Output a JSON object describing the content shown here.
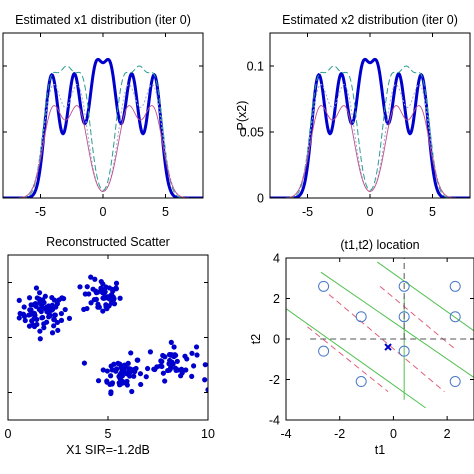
{
  "chart_data": [
    {
      "type": "line",
      "title": "Estimated x1 distribution (iter 0)",
      "xlabel": "",
      "ylabel": "",
      "xlim": [
        -8,
        8
      ],
      "ylim": [
        0,
        0.125
      ],
      "xticks": [
        -5,
        0,
        5
      ],
      "xtick_labels": [
        "-5",
        "0",
        "5"
      ],
      "yticks": [
        0,
        0.05,
        0.1
      ],
      "ytick_labels": [],
      "series": [
        {
          "color": "#0000cc",
          "style": "solid-thick",
          "kind": "mixture",
          "centers": [
            -4.1,
            -2.3,
            -0.6,
            0.6,
            2.3,
            4.1
          ],
          "sigma": 0.55,
          "peak": 0.105
        },
        {
          "color": "#2a9d8f",
          "style": "dashed",
          "kind": "mixture",
          "centers": [
            -4.2,
            -2.9,
            -1.6,
            1.6,
            2.9,
            4.2
          ],
          "sigma": 0.62,
          "peak": 0.1
        },
        {
          "color": "#9aa9d6",
          "style": "dotted",
          "kind": "mixture",
          "centers": [
            -4.0,
            -2.0,
            2.0,
            4.0
          ],
          "sigma": 0.75,
          "peak": 0.086
        },
        {
          "color": "#c0508a",
          "style": "solid-thin",
          "kind": "mixture",
          "centers": [
            -4.0,
            -2.0,
            2.0,
            4.0
          ],
          "sigma": 0.78,
          "peak": 0.07
        }
      ]
    },
    {
      "type": "line",
      "title": "Estimated x2 distribution (iter 0)",
      "xlabel": "",
      "ylabel": "P(x2)",
      "xlim": [
        -8,
        8
      ],
      "ylim": [
        0,
        0.125
      ],
      "xticks": [
        -5,
        0,
        5
      ],
      "xtick_labels": [
        "-5",
        "0",
        "5"
      ],
      "yticks": [
        0,
        0.05,
        0.1
      ],
      "ytick_labels": [
        "0",
        "0.05",
        "0.1"
      ],
      "series": [
        {
          "color": "#0000cc",
          "style": "solid-thick",
          "kind": "mixture",
          "centers": [
            -4.1,
            -2.3,
            -0.6,
            0.6,
            2.3,
            4.1
          ],
          "sigma": 0.55,
          "peak": 0.105
        },
        {
          "color": "#2a9d8f",
          "style": "dashed",
          "kind": "mixture",
          "centers": [
            -4.2,
            -2.9,
            -1.6,
            1.6,
            2.9,
            4.2
          ],
          "sigma": 0.62,
          "peak": 0.1
        },
        {
          "color": "#9aa9d6",
          "style": "dotted",
          "kind": "mixture",
          "centers": [
            -4.0,
            -2.0,
            2.0,
            4.0
          ],
          "sigma": 0.75,
          "peak": 0.086
        },
        {
          "color": "#c0508a",
          "style": "solid-thin",
          "kind": "mixture",
          "centers": [
            -4.0,
            -2.0,
            2.0,
            4.0
          ],
          "sigma": 0.78,
          "peak": 0.07
        }
      ]
    },
    {
      "type": "scatter",
      "title": "Reconstructed Scatter",
      "xlabel": "X1 SIR=-1.2dB",
      "ylabel": "",
      "xlim": [
        0,
        10
      ],
      "ylim": [
        -1.5,
        1.5
      ],
      "xticks": [
        0,
        5,
        10
      ],
      "xtick_labels": [
        "0",
        "5",
        "10"
      ],
      "yticks": [
        -1,
        0,
        1
      ],
      "ytick_labels": [],
      "color": "#0000cc",
      "x_is_centered_axis": true,
      "clusters": [
        {
          "cx": -3.2,
          "cy": 0.45,
          "sx": 1.0,
          "sy": 0.18,
          "n": 80
        },
        {
          "cx": -0.3,
          "cy": 0.75,
          "sx": 0.8,
          "sy": 0.16,
          "n": 55
        },
        {
          "cx": 0.7,
          "cy": -0.65,
          "sx": 0.9,
          "sy": 0.16,
          "n": 60
        },
        {
          "cx": 3.2,
          "cy": -0.45,
          "sx": 1.0,
          "sy": 0.16,
          "n": 50
        }
      ],
      "outliers": [
        [
          6.8,
          -0.95
        ]
      ]
    },
    {
      "type": "scatter",
      "title": "(t1,t2) location",
      "xlabel": "t1",
      "ylabel": "t2",
      "xlim": [
        -4,
        3
      ],
      "ylim": [
        -4,
        4
      ],
      "xticks": [
        -4,
        -2,
        0,
        2
      ],
      "xtick_labels": [
        "-4",
        "-2",
        "0",
        "2"
      ],
      "yticks": [
        -4,
        -2,
        0,
        2,
        4
      ],
      "ytick_labels": [
        "-4",
        "-2",
        "0",
        "2",
        "4"
      ],
      "circles": [
        [
          -2.6,
          2.6
        ],
        [
          0.4,
          2.6
        ],
        [
          2.3,
          2.6
        ],
        [
          -1.2,
          1.1
        ],
        [
          0.4,
          1.1
        ],
        [
          2.3,
          1.1
        ],
        [
          -2.6,
          -0.6
        ],
        [
          0.4,
          -0.6
        ],
        [
          -1.2,
          -2.1
        ],
        [
          2.3,
          -2.1
        ]
      ],
      "circle_color": "#4a78c8",
      "cross": [
        -0.2,
        -0.4
      ],
      "cross_color": "#0000cc",
      "green_lines": [
        {
          "x0": -2.7,
          "y0": 3.3,
          "x1": 3,
          "y1": -1.9
        },
        {
          "x0": -4,
          "y0": 1.5,
          "x1": 1.2,
          "y1": -3.4
        },
        {
          "x0": -0.6,
          "y0": 3.8,
          "x1": 3,
          "y1": 0.4
        }
      ],
      "green_vertical": {
        "x": 0.4,
        "y0": -3.0,
        "y1": 2.1
      },
      "pink_lines": [
        {
          "x0": -2.4,
          "y0": 2.2,
          "x1": 1.9,
          "y1": -2.6
        },
        {
          "x0": -0.5,
          "y0": 2.6,
          "x1": 2.3,
          "y1": -0.5
        },
        {
          "x0": -3.2,
          "y0": 0.6,
          "x1": -0.2,
          "y1": -2.6
        }
      ],
      "gray_dashed_h": {
        "y": 0,
        "x0": -3.1,
        "x1": 3
      },
      "gray_dashed_v": {
        "x": 0.4,
        "y0": 0,
        "y1": 4
      }
    }
  ]
}
